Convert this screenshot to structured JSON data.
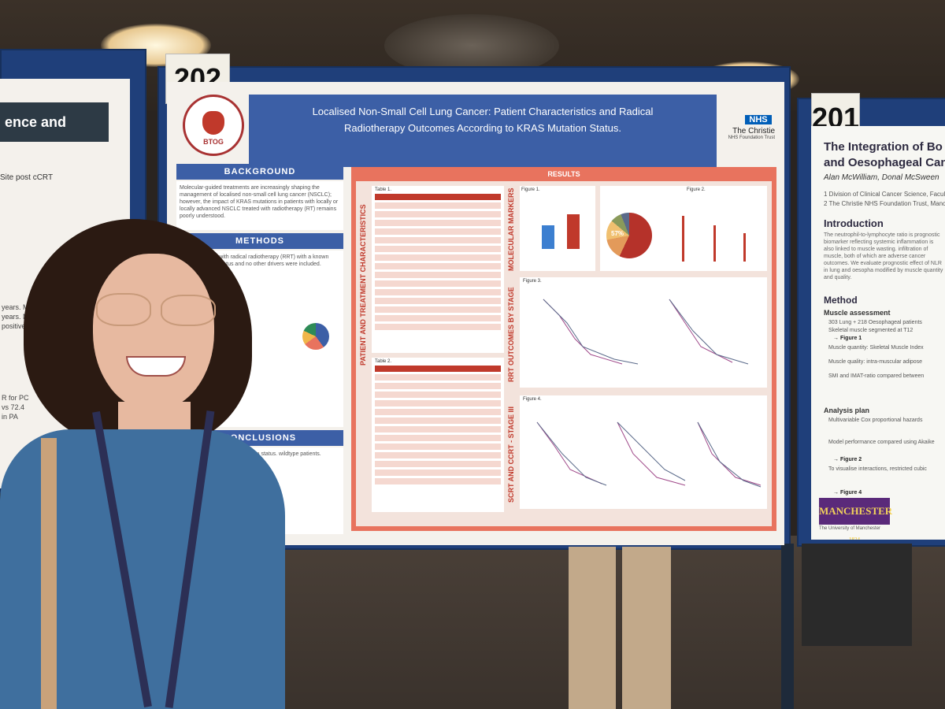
{
  "poster_main": {
    "number": "202",
    "title_line1": "Localised Non-Small Cell Lung Cancer: Patient Characteristics and Radical",
    "title_line2": "Radiotherapy Outcomes According to KRAS Mutation Status.",
    "logo_text": "BTOG",
    "nhs_badge": "NHS",
    "nhs_org": "The Christie",
    "nhs_sub": "NHS Foundation Trust",
    "sections": {
      "background": "BACKGROUND",
      "background_text": "Molecular-guided treatments are increasingly shaping the management of localised non-small cell lung cancer (NSCLC); however, the impact of KRAS mutations in patients with locally or locally advanced NSCLC treated with radiotherapy (RT) remains poorly understood.",
      "methods": "METHODS",
      "methods_text": "patients treated with radical radiotherapy (RRT) with a known KRAS mutation status and no other drivers were included.",
      "conclusions": "CONCLUSIONS",
      "conclusions_text": "NSCLC disease. KRAS mutation status. wildtype patients.",
      "results": "RESULTS",
      "side1": "PATIENT AND TREATMENT CHARACTERISTICS",
      "side2": "MOLECULAR MARKERS",
      "side3": "RRT OUTCOMES BY STAGE",
      "side4": "SCRT AND CCRT - STAGE III",
      "pie_label": "57%",
      "figure1": "Figure 1.",
      "figure2": "Figure 2.",
      "figure3": "Figure 3.",
      "figure4": "Figure 4.",
      "table1": "Table 1.",
      "table2": "Table 2."
    }
  },
  "poster_right": {
    "number": "201",
    "title": "The Integration of Bo",
    "title2": "and Oesophageal Canc",
    "authors": "Alan McWilliam, Donal McSween",
    "affil1": "1 Division of Clinical Cancer Science, Faculty",
    "affil2": "2 The Christie NHS Foundation Trust, Manch",
    "intro": "Introduction",
    "intro_text": "The neutrophil-to-lymphocyte ratio is prognostic biomarker reflecting systemic inflammation is also linked to muscle wasting. infiltration of muscle, both of which are adverse cancer outcomes. We evaluate prognostic effect of NLR in lung and oesopha modified by muscle quantity and quality.",
    "method": "Method",
    "muscle": "Muscle assessment",
    "m1": "303 Lung + 218 Oesophageal patients",
    "m2": "Skeletal muscle segmented at T12",
    "fig1": "→ Figure 1",
    "m3": "Muscle quantity: Skeletal Muscle Index",
    "m4": "Muscle quality: intra-muscular adipose",
    "m5": "SMI and IMAT-ratio compared between",
    "analysis": "Analysis plan",
    "a1": "Multivariable Cox proportional hazards",
    "a2": "Model performance compared using Akaike",
    "fig2": "→ Figure 2",
    "a3": "To visualise interactions, restricted cubic",
    "fig4": "→ Figure 4",
    "uni": "MANCHESTER",
    "uni_year": "1824",
    "uni_sub": "The University of Manchester"
  },
  "poster_left": {
    "title": "ence and",
    "subtitle": "Site post cCRT",
    "lines": [
      "years. Median F",
      "years. Median",
      "positive d",
      "R for PC",
      "vs 72.4",
      "in PA"
    ]
  }
}
